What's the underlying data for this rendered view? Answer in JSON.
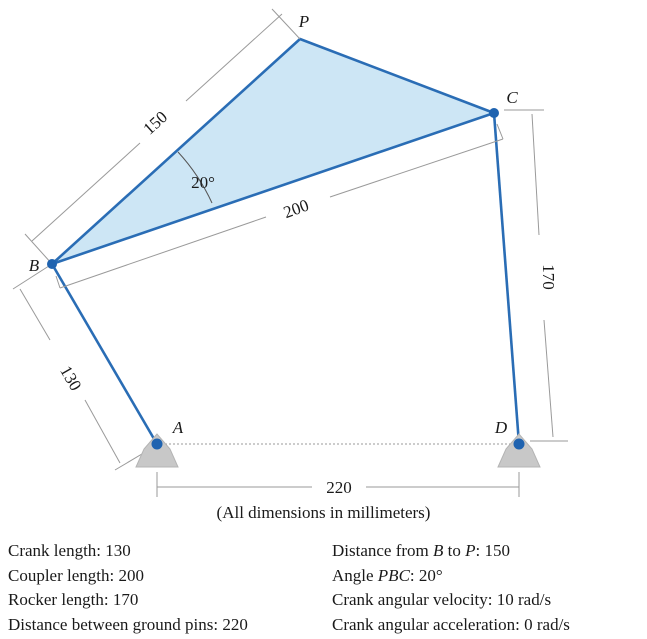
{
  "diagram": {
    "points": {
      "P": "P",
      "C": "C",
      "B": "B",
      "A": "A",
      "D": "D"
    },
    "dims": {
      "bp": "150",
      "bc": "200",
      "ba": "130",
      "cd": "170",
      "ad": "220",
      "angle": "20°"
    },
    "colors": {
      "link": "#2a6db5",
      "fill": "#cde6f5",
      "joint": "#1f63b0",
      "ground": "#c8c8c8",
      "dim": "#9a9a9a"
    }
  },
  "caption": "(All dimensions in millimeters)",
  "specs": {
    "left": [
      {
        "label": "Crank length:",
        "value": "130"
      },
      {
        "label": "Coupler length:",
        "value": "200"
      },
      {
        "label": "Rocker length:",
        "value": "170"
      },
      {
        "label": "Distance between ground pins:",
        "value": "220"
      }
    ],
    "right": [
      {
        "pre": "Distance from ",
        "v1": "B",
        "mid": " to ",
        "v2": "P",
        "post": ":",
        "value": "150"
      },
      {
        "pre": "Angle ",
        "v1": "PBC",
        "post": ":",
        "value": "20°"
      },
      {
        "label": "Crank angular velocity:",
        "value": "10 rad/s"
      },
      {
        "label": "Crank angular acceleration:",
        "value": "0 rad/s"
      }
    ]
  }
}
